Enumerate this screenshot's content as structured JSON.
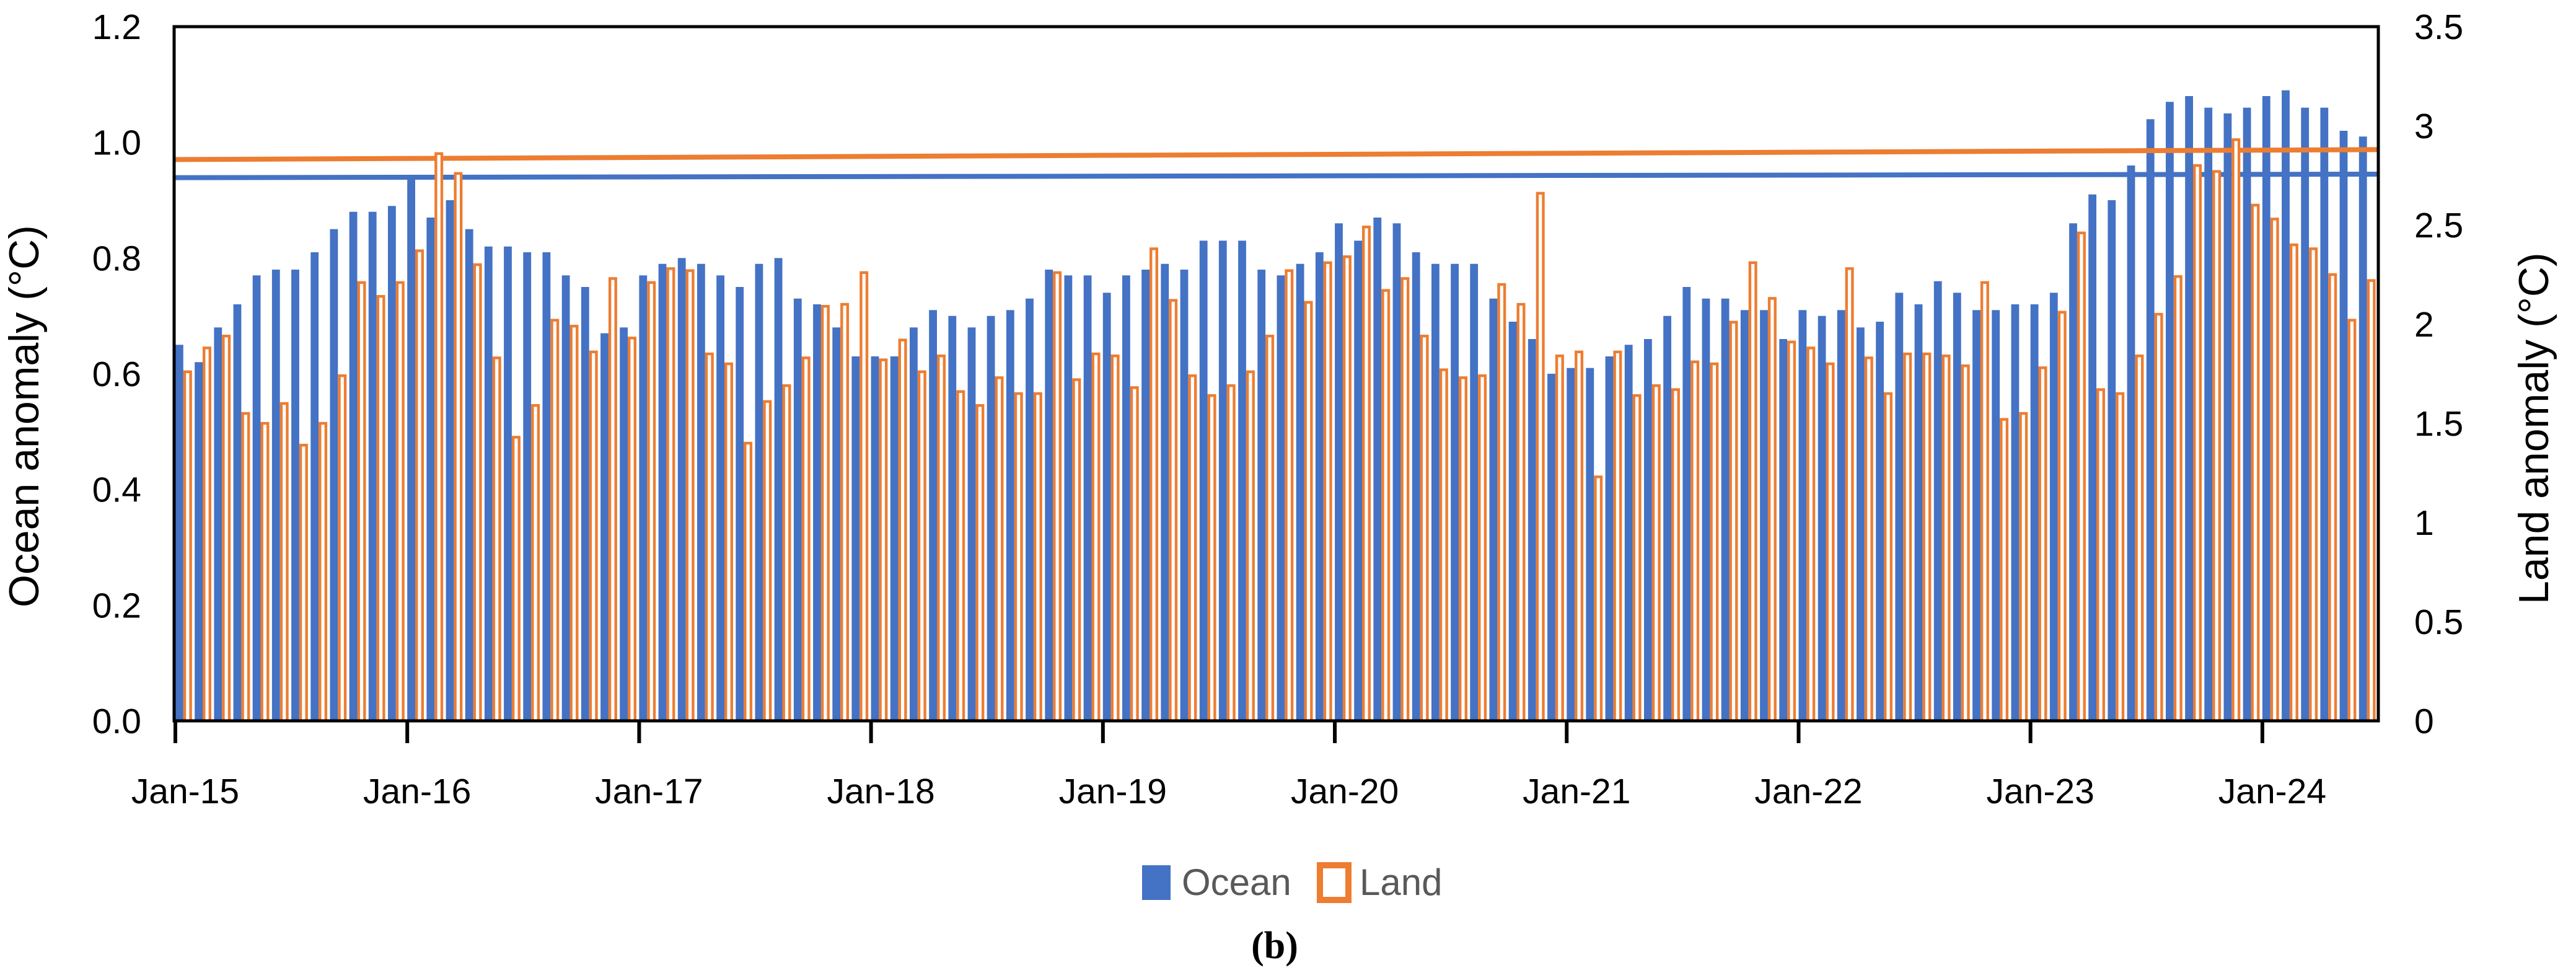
{
  "figure": {
    "caption": "(b)"
  },
  "left_axis": {
    "title": "Ocean anomaly (°C)",
    "tick_labels": [
      "0.0",
      "0.2",
      "0.4",
      "0.6",
      "0.8",
      "1.0",
      "1.2"
    ],
    "min": 0,
    "max": 1.2
  },
  "right_axis": {
    "title": "Land anomaly (°C)",
    "tick_labels": [
      "0",
      "0.5",
      "1",
      "1.5",
      "2",
      "2.5",
      "3",
      "3.5"
    ],
    "min": 0,
    "max": 3.5
  },
  "x_axis": {
    "tick_labels": [
      "Jan-15",
      "Jan-16",
      "Jan-17",
      "Jan-18",
      "Jan-19",
      "Jan-20",
      "Jan-21",
      "Jan-22",
      "Jan-23",
      "Jan-24"
    ],
    "months_per_tick": 12,
    "total_months": 114,
    "start_month": "Jan-2015",
    "end_month": "Jun-2024"
  },
  "legend": {
    "items": [
      {
        "label": "Ocean",
        "color": "#4472C4",
        "style": "filled"
      },
      {
        "label": "Land",
        "color": "#ED7D31",
        "style": "outlined"
      }
    ],
    "text_color": "#595959"
  },
  "colors": {
    "ocean": "#4472C4",
    "land": "#ED7D31",
    "axis": "#000000",
    "background": "#ffffff",
    "legend_text": "#595959"
  },
  "chart_data": {
    "type": "bar",
    "title": "",
    "xlabel": "",
    "left_ylabel": "Ocean anomaly (°C)",
    "right_ylabel": "Land anomaly (°C)",
    "left_ylim": [
      0,
      1.2
    ],
    "right_ylim": [
      0,
      3.5
    ],
    "grid": false,
    "legend_position": "bottom",
    "x_tick_labels": [
      "Jan-15",
      "Jan-16",
      "Jan-17",
      "Jan-18",
      "Jan-19",
      "Jan-20",
      "Jan-21",
      "Jan-22",
      "Jan-23",
      "Jan-24"
    ],
    "series": [
      {
        "name": "Ocean",
        "axis": "left",
        "color": "#4472C4",
        "style": "filled",
        "values": [
          0.65,
          0.62,
          0.68,
          0.72,
          0.77,
          0.78,
          0.78,
          0.81,
          0.85,
          0.88,
          0.88,
          0.89,
          0.94,
          0.87,
          0.9,
          0.85,
          0.82,
          0.82,
          0.81,
          0.81,
          0.77,
          0.75,
          0.67,
          0.68,
          0.77,
          0.79,
          0.8,
          0.79,
          0.77,
          0.75,
          0.79,
          0.8,
          0.73,
          0.72,
          0.68,
          0.63,
          0.63,
          0.63,
          0.68,
          0.71,
          0.7,
          0.68,
          0.7,
          0.71,
          0.73,
          0.78,
          0.77,
          0.77,
          0.74,
          0.77,
          0.78,
          0.79,
          0.78,
          0.83,
          0.83,
          0.83,
          0.78,
          0.77,
          0.79,
          0.81,
          0.86,
          0.83,
          0.87,
          0.86,
          0.81,
          0.79,
          0.79,
          0.79,
          0.73,
          0.69,
          0.66,
          0.6,
          0.61,
          0.61,
          0.63,
          0.65,
          0.66,
          0.7,
          0.75,
          0.73,
          0.73,
          0.71,
          0.71,
          0.66,
          0.71,
          0.7,
          0.71,
          0.68,
          0.69,
          0.74,
          0.72,
          0.76,
          0.74,
          0.71,
          0.71,
          0.72,
          0.72,
          0.74,
          0.86,
          0.91,
          0.9,
          0.96,
          1.04,
          1.07,
          1.08,
          1.06,
          1.05,
          1.06,
          1.08,
          1.09,
          1.06,
          1.06,
          1.02,
          1.01
        ]
      },
      {
        "name": "Land",
        "axis": "right",
        "color": "#ED7D31",
        "style": "outlined",
        "values": [
          1.76,
          1.88,
          1.94,
          1.55,
          1.5,
          1.6,
          1.39,
          1.5,
          1.74,
          2.21,
          2.14,
          2.21,
          2.37,
          2.86,
          2.76,
          2.3,
          1.83,
          1.43,
          1.59,
          2.02,
          1.99,
          1.86,
          2.23,
          1.93,
          2.21,
          2.28,
          2.27,
          1.85,
          1.8,
          1.4,
          1.61,
          1.69,
          1.83,
          2.09,
          2.1,
          2.26,
          1.82,
          1.92,
          1.76,
          1.84,
          1.66,
          1.59,
          1.73,
          1.65,
          1.65,
          2.26,
          1.72,
          1.85,
          1.84,
          1.68,
          2.38,
          2.12,
          1.74,
          1.64,
          1.69,
          1.76,
          1.94,
          2.27,
          2.11,
          2.31,
          2.34,
          2.49,
          2.17,
          2.23,
          1.94,
          1.77,
          1.73,
          1.74,
          2.2,
          2.1,
          2.66,
          1.84,
          1.86,
          1.23,
          1.86,
          1.64,
          1.69,
          1.67,
          1.81,
          1.8,
          2.01,
          2.31,
          2.13,
          1.91,
          1.88,
          1.8,
          2.28,
          1.83,
          1.65,
          1.85,
          1.85,
          1.84,
          1.79,
          2.21,
          1.52,
          1.55,
          1.78,
          2.06,
          2.46,
          1.67,
          1.65,
          1.84,
          2.05,
          2.24,
          2.8,
          2.77,
          2.93,
          2.6,
          2.53,
          2.4,
          2.38,
          2.25,
          2.02,
          2.22
        ]
      }
    ],
    "reference_lines": [
      {
        "name": "Ocean reference line",
        "axis": "left",
        "color": "#4472C4",
        "start_value": 0.939,
        "end_value": 0.945
      },
      {
        "name": "Land reference line",
        "axis": "right",
        "color": "#ED7D31",
        "start_value": 2.83,
        "end_value": 2.88
      }
    ]
  }
}
